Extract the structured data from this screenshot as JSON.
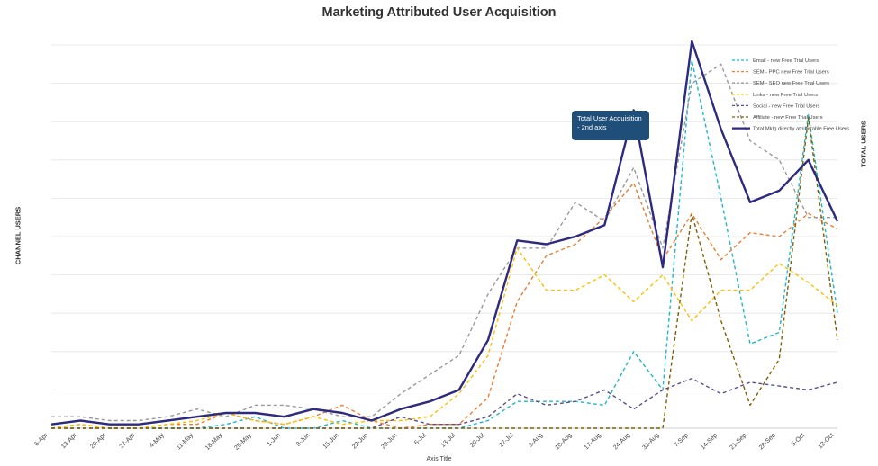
{
  "chart_data": {
    "type": "line",
    "title": "Marketing Attributed User Acquisition",
    "xlabel": "Axis Title",
    "ylabel": "CHANNEL USERS",
    "y2label": "TOTAL USERS",
    "grid": true,
    "legend_position": "top-right",
    "categories": [
      "6-Apr",
      "13-Apr",
      "20-Apr",
      "27-Apr",
      "4-May",
      "11-May",
      "18-May",
      "25-May",
      "1-Jun",
      "8-Jun",
      "15-Jun",
      "22-Jun",
      "29-Jun",
      "6-Jul",
      "13-Jul",
      "20-Jul",
      "27-Jul",
      "3-Aug",
      "10-Aug",
      "17-Aug",
      "24-Aug",
      "31-Aug",
      "7-Sep",
      "14-Sep",
      "21-Sep",
      "28-Sep",
      "5-Oct",
      "12-Oct"
    ],
    "ylim": [
      0,
      100
    ],
    "y2lim": [
      0,
      100
    ],
    "annotation": {
      "line1": "Total User Acquisition",
      "line2": "- 2nd axis"
    },
    "series": [
      {
        "name": "Email - new Free Trial Users",
        "color": "#1fb8c9",
        "dash": "dashed",
        "axis": "left",
        "values": [
          0,
          1,
          0,
          0,
          0,
          0,
          1,
          3,
          0,
          0,
          2,
          0,
          0,
          0,
          0,
          2,
          7,
          7,
          7,
          6,
          20,
          10,
          96,
          60,
          22,
          25,
          82,
          30
        ]
      },
      {
        "name": "SEM - PPC new Free Trial Users",
        "color": "#ed7d31",
        "dash": "dashed",
        "axis": "left",
        "values": [
          0,
          1,
          0,
          0,
          1,
          1,
          4,
          2,
          1,
          3,
          6,
          2,
          0,
          1,
          1,
          8,
          33,
          45,
          48,
          55,
          64,
          44,
          56,
          44,
          51,
          50,
          56,
          52
        ]
      },
      {
        "name": "SEM - SEO new Free Trial Users",
        "color": "#999999",
        "dash": "dashed",
        "axis": "left",
        "values": [
          3,
          3,
          2,
          2,
          3,
          5,
          3,
          6,
          6,
          5,
          3,
          3,
          9,
          14,
          19,
          35,
          47,
          47,
          59,
          54,
          68,
          47,
          90,
          95,
          75,
          70,
          55,
          55
        ]
      },
      {
        "name": "Links - new Free Trial Users",
        "color": "#ffc000",
        "dash": "dashed",
        "axis": "left",
        "values": [
          0,
          1,
          0,
          0,
          1,
          2,
          4,
          2,
          1,
          3,
          1,
          2,
          2,
          3,
          9,
          19,
          47,
          36,
          36,
          40,
          33,
          40,
          28,
          36,
          36,
          43,
          38,
          32
        ]
      },
      {
        "name": "Social - new Free Trial Users",
        "color": "#5a4f8c",
        "dash": "dashed",
        "axis": "left",
        "values": [
          0,
          0,
          0,
          0,
          0,
          0,
          0,
          0,
          0,
          0,
          0,
          0,
          3,
          1,
          1,
          3,
          9,
          6,
          7,
          10,
          5,
          10,
          13,
          9,
          12,
          11,
          10,
          12
        ]
      },
      {
        "name": "Affiliate - new Free Trial Users",
        "color": "#7f6000",
        "dash": "dashed",
        "axis": "left",
        "values": [
          0,
          0,
          0,
          0,
          0,
          0,
          0,
          0,
          0,
          0,
          0,
          0,
          0,
          0,
          0,
          0,
          0,
          0,
          0,
          0,
          0,
          0,
          56,
          28,
          6,
          18,
          81,
          23
        ]
      },
      {
        "name": "Total Mktg directly attributable Free Users",
        "color": "#2e2a7f",
        "dash": "solid",
        "axis": "right",
        "values": [
          1,
          2,
          1,
          1,
          2,
          3,
          4,
          4,
          3,
          5,
          4,
          2,
          5,
          7,
          10,
          23,
          49,
          48,
          50,
          53,
          83,
          42,
          101,
          78,
          59,
          62,
          70,
          54
        ]
      }
    ]
  }
}
